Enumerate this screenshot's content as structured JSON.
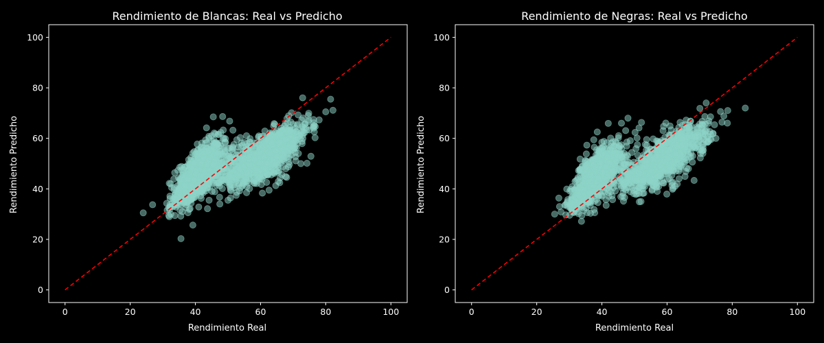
{
  "chart_data": [
    {
      "type": "scatter",
      "title": "Rendimiento de Blancas: Real vs Predicho",
      "xlabel": "Rendimiento Real",
      "ylabel": "Rendimiento Predicho",
      "xlim": [
        -5,
        105
      ],
      "ylim": [
        -5,
        105
      ],
      "xticks": [
        0,
        20,
        40,
        60,
        80,
        100
      ],
      "yticks": [
        0,
        20,
        40,
        60,
        80,
        100
      ],
      "grid": false,
      "point_color": "#8dd3c7",
      "reference_line": {
        "from": [
          0,
          0
        ],
        "to": [
          100,
          100
        ],
        "color": "#ff0000",
        "style": "dashed"
      },
      "clusters": [
        {
          "cx": 41,
          "cy": 46,
          "sx": 3.5,
          "sy": 6,
          "corr": 0.6,
          "n": 650
        },
        {
          "cx": 36,
          "cy": 38,
          "sx": 2,
          "sy": 3,
          "corr": 0.8,
          "n": 120
        },
        {
          "cx": 63,
          "cy": 55,
          "sx": 6,
          "sy": 6,
          "corr": 0.75,
          "n": 700
        },
        {
          "cx": 57,
          "cy": 47,
          "sx": 6,
          "sy": 4,
          "corr": 0.3,
          "n": 200
        },
        {
          "cx": 48,
          "cy": 52,
          "sx": 4,
          "sy": 6,
          "corr": 0.3,
          "n": 120
        }
      ],
      "points": [
        [
          24,
          30.5
        ],
        [
          81.5,
          75.5
        ],
        [
          80,
          70.5
        ],
        [
          47.5,
          34
        ],
        [
          32,
          29
        ],
        [
          45.5,
          68.5
        ],
        [
          76,
          64.5
        ],
        [
          73,
          60
        ],
        [
          36,
          31
        ],
        [
          60,
          44
        ],
        [
          58,
          42.5
        ]
      ]
    },
    {
      "type": "scatter",
      "title": "Rendimiento de Negras: Real vs Predicho",
      "xlabel": "Rendimiento Real",
      "ylabel": "Rendimiento Predicho",
      "xlim": [
        -5,
        105
      ],
      "ylim": [
        -5,
        105
      ],
      "xticks": [
        0,
        20,
        40,
        60,
        80,
        100
      ],
      "yticks": [
        0,
        20,
        40,
        60,
        80,
        100
      ],
      "grid": false,
      "point_color": "#8dd3c7",
      "reference_line": {
        "from": [
          0,
          0
        ],
        "to": [
          100,
          100
        ],
        "color": "#ff0000",
        "style": "dashed"
      },
      "clusters": [
        {
          "cx": 38,
          "cy": 45,
          "sx": 3.5,
          "sy": 6,
          "corr": 0.6,
          "n": 650
        },
        {
          "cx": 33,
          "cy": 36,
          "sx": 2,
          "sy": 3,
          "corr": 0.8,
          "n": 140
        },
        {
          "cx": 61,
          "cy": 54,
          "sx": 6,
          "sy": 6,
          "corr": 0.75,
          "n": 650
        },
        {
          "cx": 54,
          "cy": 45,
          "sx": 6,
          "sy": 4,
          "corr": 0.3,
          "n": 200
        },
        {
          "cx": 46,
          "cy": 50,
          "sx": 4,
          "sy": 6,
          "corr": 0.3,
          "n": 100
        }
      ],
      "points": [
        [
          84,
          72
        ],
        [
          75,
          60
        ],
        [
          73.5,
          59.5
        ],
        [
          72,
          74
        ],
        [
          25.5,
          30
        ],
        [
          27,
          33
        ],
        [
          48,
          68
        ],
        [
          46,
          66
        ],
        [
          71,
          54
        ],
        [
          52,
          35
        ],
        [
          57,
          39
        ]
      ]
    }
  ]
}
